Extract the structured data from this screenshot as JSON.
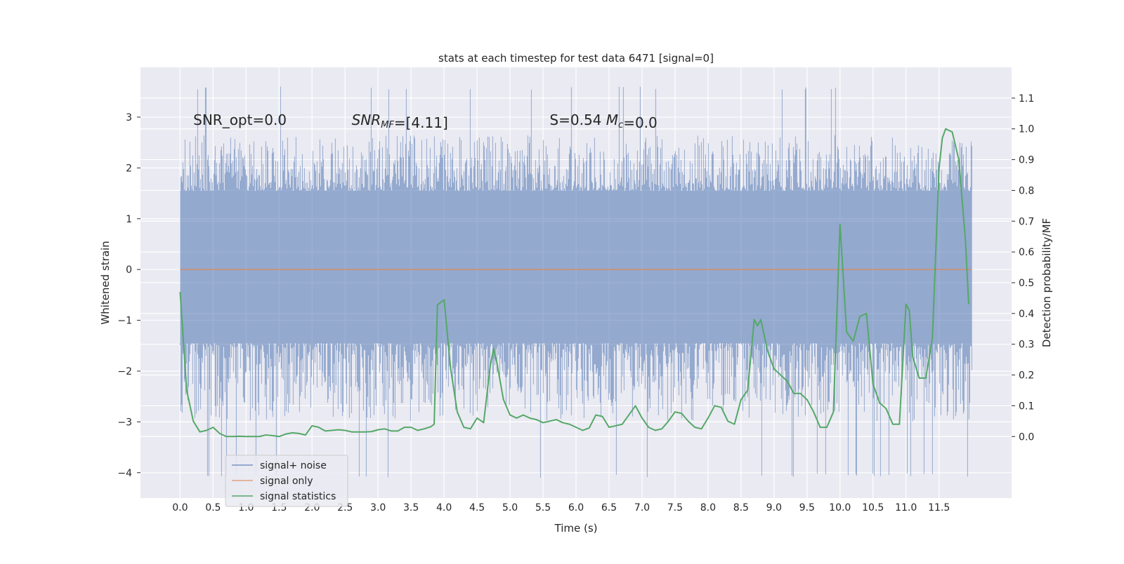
{
  "chart_data": {
    "type": "line",
    "title": "stats at each timestep for test data 6471 [signal=0]",
    "xlabel": "Time (s)",
    "ylabel": "Whitened strain",
    "ylabel_right": "Detection probability/MF",
    "xlim": [
      -0.6,
      12.6
    ],
    "ylim": [
      -4.5,
      3.98
    ],
    "ylim_right": [
      -0.2,
      1.2
    ],
    "x_ticks": [
      "0.0",
      "0.5",
      "1.0",
      "1.5",
      "2.0",
      "2.5",
      "3.0",
      "3.5",
      "4.0",
      "4.5",
      "5.0",
      "5.5",
      "6.0",
      "6.5",
      "7.0",
      "7.5",
      "8.0",
      "8.5",
      "9.0",
      "9.5",
      "10.0",
      "10.5",
      "11.0",
      "11.5"
    ],
    "y_ticks": [
      "3",
      "2",
      "1",
      "0",
      "−1",
      "−2",
      "−3",
      "−4"
    ],
    "y_ticks_right": [
      "1.1",
      "1.0",
      "0.9",
      "0.8",
      "0.7",
      "0.6",
      "0.5",
      "0.4",
      "0.3",
      "0.2",
      "0.1",
      "0.0"
    ],
    "grid": true,
    "legend_position": "bottom-left",
    "colors": {
      "noise": "#4c72b0",
      "signal": "#dd8452",
      "stats": "#55a868",
      "plot_bg": "#eaeaf2",
      "grid": "#ffffff"
    },
    "annotations": [
      {
        "text": "SNR_opt=0.0",
        "x": 0.2,
        "y": 2.85
      },
      {
        "text": "SNR_MF=[4.11]",
        "x": 2.6,
        "y": 2.85
      },
      {
        "text": "S=0.54  M_c=0.0",
        "x": 5.6,
        "y": 2.85
      }
    ],
    "series": [
      {
        "name": "signal+ noise",
        "x_range": [
          0.0,
          12.0
        ],
        "band": [
          -1.45,
          1.55
        ],
        "spike_max": 3.6,
        "spike_min": -4.1
      },
      {
        "name": "signal only",
        "x": [
          0.0,
          12.0
        ],
        "values": [
          0.0,
          0.0
        ]
      },
      {
        "name": "signal statistics",
        "x": [
          0.0,
          0.1,
          0.2,
          0.3,
          0.4,
          0.5,
          0.6,
          0.7,
          0.8,
          0.9,
          1.0,
          1.1,
          1.2,
          1.3,
          1.4,
          1.5,
          1.6,
          1.7,
          1.8,
          1.9,
          2.0,
          2.1,
          2.2,
          2.3,
          2.4,
          2.5,
          2.6,
          2.7,
          2.8,
          2.9,
          3.0,
          3.1,
          3.2,
          3.3,
          3.4,
          3.5,
          3.6,
          3.7,
          3.8,
          3.85,
          3.9,
          4.0,
          4.1,
          4.2,
          4.3,
          4.4,
          4.5,
          4.6,
          4.7,
          4.75,
          4.8,
          4.9,
          5.0,
          5.1,
          5.2,
          5.3,
          5.4,
          5.5,
          5.6,
          5.7,
          5.8,
          5.9,
          6.0,
          6.1,
          6.2,
          6.3,
          6.4,
          6.5,
          6.6,
          6.7,
          6.8,
          6.9,
          7.0,
          7.1,
          7.2,
          7.3,
          7.4,
          7.5,
          7.6,
          7.7,
          7.8,
          7.9,
          8.0,
          8.1,
          8.2,
          8.3,
          8.4,
          8.5,
          8.6,
          8.7,
          8.75,
          8.8,
          8.9,
          9.0,
          9.1,
          9.2,
          9.3,
          9.4,
          9.5,
          9.6,
          9.7,
          9.8,
          9.9,
          10.0,
          10.1,
          10.2,
          10.3,
          10.4,
          10.5,
          10.6,
          10.7,
          10.8,
          10.9,
          11.0,
          11.05,
          11.1,
          11.2,
          11.3,
          11.4,
          11.5,
          11.55,
          11.6,
          11.7,
          11.8,
          11.9,
          11.95
        ],
        "values": [
          0.47,
          0.15,
          0.05,
          0.015,
          0.02,
          0.03,
          0.01,
          0.0,
          0.0,
          0.001,
          0.0,
          0.0,
          0.0,
          0.005,
          0.003,
          0.0,
          0.008,
          0.012,
          0.01,
          0.005,
          0.035,
          0.03,
          0.018,
          0.02,
          0.022,
          0.02,
          0.015,
          0.015,
          0.015,
          0.016,
          0.022,
          0.025,
          0.018,
          0.018,
          0.03,
          0.03,
          0.02,
          0.025,
          0.032,
          0.04,
          0.428,
          0.445,
          0.22,
          0.08,
          0.03,
          0.025,
          0.06,
          0.045,
          0.23,
          0.285,
          0.24,
          0.12,
          0.07,
          0.06,
          0.07,
          0.06,
          0.055,
          0.045,
          0.05,
          0.055,
          0.045,
          0.04,
          0.03,
          0.02,
          0.028,
          0.07,
          0.065,
          0.03,
          0.035,
          0.04,
          0.07,
          0.1,
          0.06,
          0.03,
          0.02,
          0.025,
          0.05,
          0.08,
          0.075,
          0.05,
          0.03,
          0.025,
          0.06,
          0.1,
          0.095,
          0.05,
          0.04,
          0.12,
          0.15,
          0.38,
          0.36,
          0.38,
          0.28,
          0.22,
          0.2,
          0.18,
          0.14,
          0.14,
          0.12,
          0.08,
          0.03,
          0.03,
          0.08,
          0.69,
          0.34,
          0.31,
          0.39,
          0.4,
          0.17,
          0.11,
          0.09,
          0.04,
          0.04,
          0.43,
          0.41,
          0.26,
          0.19,
          0.19,
          0.32,
          0.87,
          0.97,
          1.0,
          0.99,
          0.9,
          0.64,
          0.43
        ]
      }
    ]
  }
}
